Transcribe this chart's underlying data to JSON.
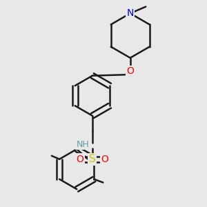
{
  "bg_color": "#e8e8e8",
  "bond_color": "#1a1a1a",
  "bond_width": 1.8,
  "atom_colors": {
    "N": "#0000ff",
    "O": "#ff0000",
    "S": "#cccc00",
    "H": "#5f9ea0",
    "C": "#1a1a1a"
  },
  "font_size": 9,
  "figsize": [
    3.0,
    3.0
  ],
  "dpi": 100
}
